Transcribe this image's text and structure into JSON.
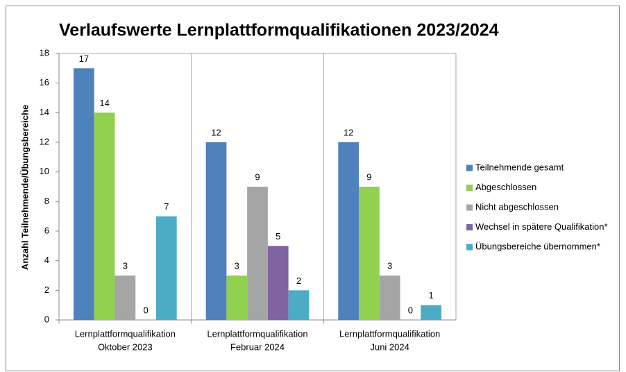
{
  "chart_data": {
    "type": "bar",
    "title": "Verlaufswerte Lernplattformqualifikationen 2023/2024",
    "y_label": "Anzahl Teilnehmende/Übungsbereiche",
    "categories": [
      [
        "Lernplattformqualifikation",
        "Oktober 2023"
      ],
      [
        "Lernplattformqualifikation",
        "Februar 2024"
      ],
      [
        "Lernplattformqualifikation",
        "Juni 2024"
      ]
    ],
    "series": [
      {
        "name": "Teilnehmende gesamt",
        "color": "#4f81bd",
        "values": [
          17,
          12,
          12
        ]
      },
      {
        "name": "Abgeschlossen",
        "color": "#92d050",
        "values": [
          14,
          3,
          9
        ]
      },
      {
        "name": "Nicht abgeschlossen",
        "color": "#a5a5a5",
        "values": [
          3,
          9,
          3
        ]
      },
      {
        "name": "Wechsel in spätere Qualifikation*",
        "color": "#8064a2",
        "values": [
          0,
          5,
          0
        ]
      },
      {
        "name": "Übungsbereiche übernommen*",
        "color": "#4bacc6",
        "values": [
          7,
          2,
          1
        ]
      }
    ],
    "ylim": [
      0,
      18
    ],
    "yticks": [
      0,
      2,
      4,
      6,
      8,
      10,
      12,
      14,
      16,
      18
    ],
    "grid": "vertical",
    "legend": "right"
  }
}
